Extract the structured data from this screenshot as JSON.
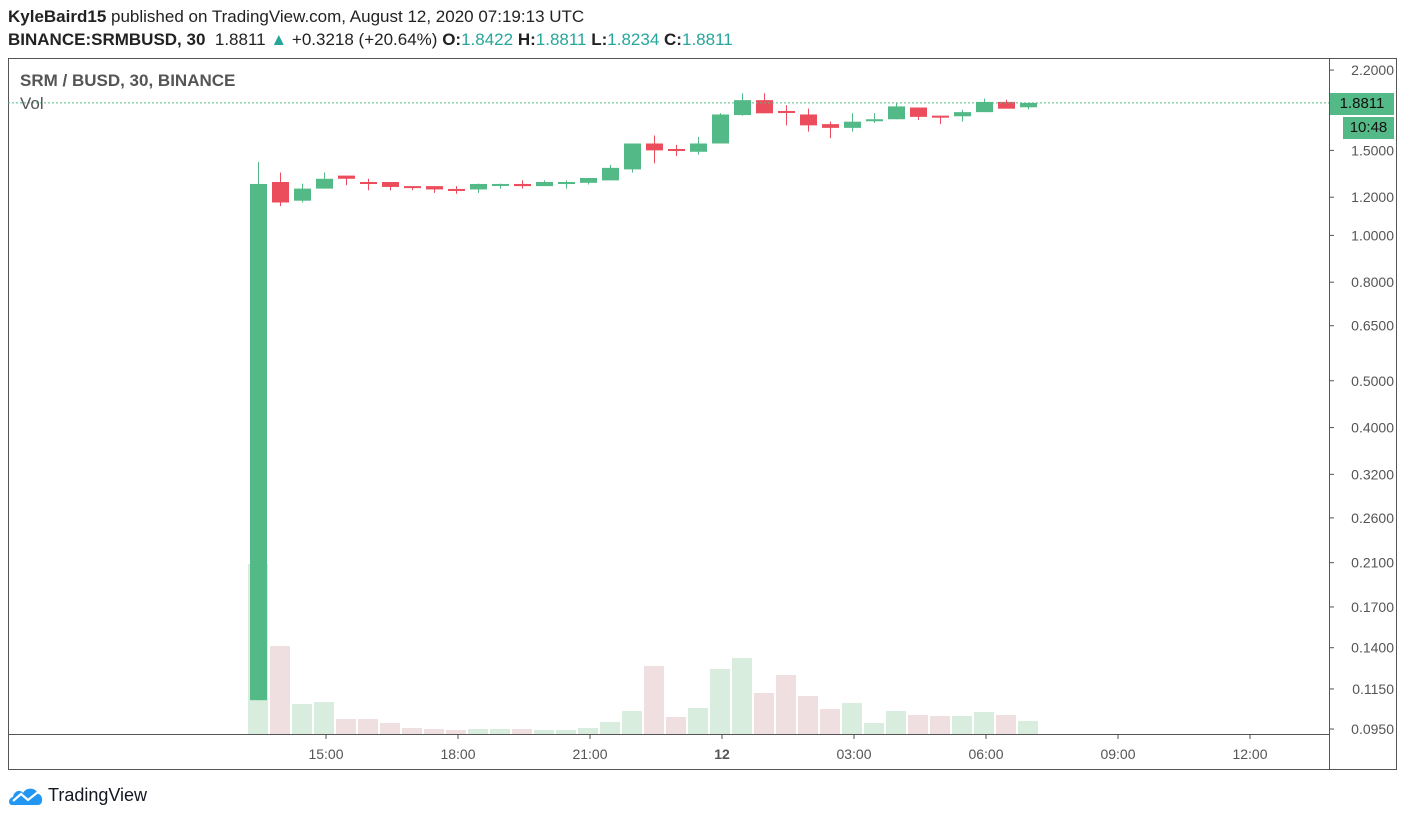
{
  "header": {
    "author": "KyleBaird15",
    "published": "published on TradingView.com, August 12, 2020 07:19:13 UTC",
    "symbol": "BINANCE:SRMBUSD, 30",
    "last": "1.8811",
    "change": "+0.3218 (+20.64%)",
    "o_label": "O:",
    "o": "1.8422",
    "h_label": "H:",
    "h": "1.8811",
    "l_label": "L:",
    "l": "1.8234",
    "c_label": "C:",
    "c": "1.8811"
  },
  "legend": {
    "title": "SRM / BUSD, 30, BINANCE",
    "vol": "Vol"
  },
  "price_label": "1.8811",
  "countdown": "10:48",
  "brand": "TradingView",
  "colors": {
    "up": "#53b987",
    "down": "#eb4d5c",
    "vol_up": "#d9eddf",
    "vol_down": "#f0dfe1",
    "accent": "#26a69a"
  },
  "chart_data": {
    "type": "candlestick",
    "scale": "log",
    "ylim": [
      0.092,
      2.25
    ],
    "last_price": 1.8811,
    "yticks": [
      "2.2000",
      "1.5000",
      "1.2000",
      "1.0000",
      "0.8000",
      "0.6500",
      "0.5000",
      "0.4000",
      "0.3200",
      "0.2600",
      "0.2100",
      "0.1700",
      "0.1400",
      "0.1150",
      "0.0950"
    ],
    "xticks": [
      {
        "label": "15:00",
        "i": 3
      },
      {
        "label": "18:00",
        "i": 9
      },
      {
        "label": "21:00",
        "i": 15
      },
      {
        "label": "12",
        "i": 21,
        "bold": true
      },
      {
        "label": "03:00",
        "i": 27
      },
      {
        "label": "06:00",
        "i": 33
      },
      {
        "label": "09:00",
        "i": 39
      },
      {
        "label": "12:00",
        "i": 45
      }
    ],
    "candles": [
      [
        0.109,
        1.42,
        0.109,
        1.278,
        170
      ],
      [
        1.29,
        1.35,
        1.15,
        1.17,
        88
      ],
      [
        1.18,
        1.28,
        1.17,
        1.25,
        30
      ],
      [
        1.25,
        1.35,
        1.25,
        1.31,
        32
      ],
      [
        1.33,
        1.33,
        1.27,
        1.31,
        15
      ],
      [
        1.29,
        1.31,
        1.24,
        1.287,
        15
      ],
      [
        1.29,
        1.29,
        1.24,
        1.26,
        11
      ],
      [
        1.265,
        1.265,
        1.24,
        1.26,
        6
      ],
      [
        1.265,
        1.265,
        1.225,
        1.245,
        5
      ],
      [
        1.248,
        1.265,
        1.22,
        1.236,
        4
      ],
      [
        1.245,
        1.28,
        1.225,
        1.278,
        5
      ],
      [
        1.27,
        1.28,
        1.25,
        1.278,
        5
      ],
      [
        1.278,
        1.3,
        1.25,
        1.265,
        5
      ],
      [
        1.265,
        1.3,
        1.265,
        1.29,
        4
      ],
      [
        1.285,
        1.3,
        1.25,
        1.29,
        4
      ],
      [
        1.285,
        1.315,
        1.275,
        1.315,
        6
      ],
      [
        1.3,
        1.4,
        1.3,
        1.38,
        12
      ],
      [
        1.37,
        1.55,
        1.35,
        1.55,
        23
      ],
      [
        1.55,
        1.61,
        1.41,
        1.5,
        68
      ],
      [
        1.51,
        1.54,
        1.46,
        1.5,
        17
      ],
      [
        1.49,
        1.6,
        1.47,
        1.55,
        26
      ],
      [
        1.55,
        1.79,
        1.55,
        1.78,
        65
      ],
      [
        1.775,
        1.97,
        1.77,
        1.906,
        76
      ],
      [
        1.906,
        1.97,
        1.79,
        1.79,
        41
      ],
      [
        1.81,
        1.86,
        1.69,
        1.805,
        59
      ],
      [
        1.78,
        1.83,
        1.64,
        1.69,
        38
      ],
      [
        1.7,
        1.72,
        1.59,
        1.67,
        25
      ],
      [
        1.67,
        1.79,
        1.64,
        1.72,
        31
      ],
      [
        1.735,
        1.79,
        1.71,
        1.74,
        11
      ],
      [
        1.74,
        1.88,
        1.74,
        1.85,
        23
      ],
      [
        1.84,
        1.84,
        1.735,
        1.76,
        19
      ],
      [
        1.77,
        1.77,
        1.7,
        1.765,
        18
      ],
      [
        1.765,
        1.82,
        1.72,
        1.8,
        18
      ],
      [
        1.8,
        1.92,
        1.8,
        1.89,
        22
      ],
      [
        1.89,
        1.91,
        1.83,
        1.83,
        19
      ],
      [
        1.8422,
        1.8811,
        1.8234,
        1.8811,
        13
      ]
    ]
  }
}
